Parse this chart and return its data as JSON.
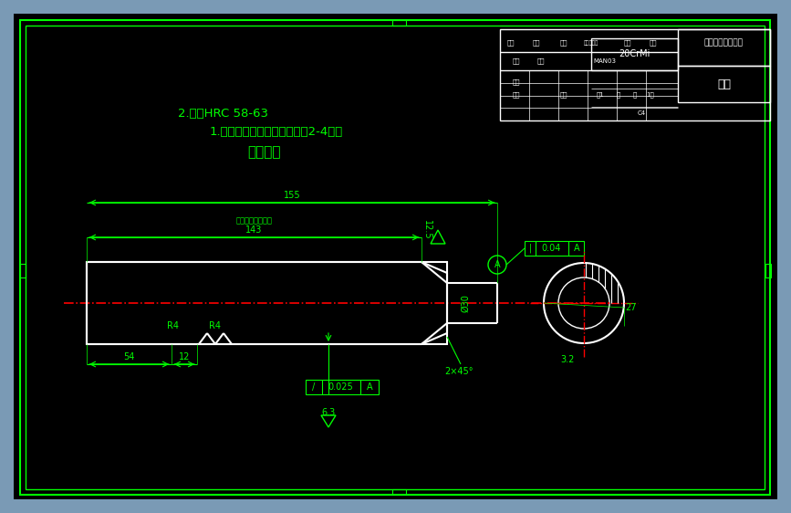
{
  "bg_color": "#000000",
  "outer_border_color": "#008000",
  "green": "#00FF00",
  "red": "#FF0000",
  "white": "#FFFFFF",
  "fig_width": 8.67,
  "fig_height": 5.62,
  "title_text": "技术要求",
  "req1": "1.进行中频淬火，硬化层深度2-4毫米",
  "req2": "2.硬度HRC 58-63",
  "tb_label": "20CrMi",
  "school": "辽宁工程技术大学",
  "main_label": "主轴",
  "dim_54": "54",
  "dim_12": "12",
  "dim_6_3": "6.3",
  "dim_0025": "0.025",
  "dim_2x45": "2×45°",
  "dim_3_2": "3.2",
  "dim_R4_1": "R4",
  "dim_R4_2": "R4",
  "dim_030": "Ø30",
  "dim_27": "27",
  "dim_143": "143",
  "dim_zhongpin": "（中频淬火区域）",
  "dim_12_5": "12.5",
  "dim_155": "155",
  "dim_0_04": "0.04",
  "dim_A": "A"
}
